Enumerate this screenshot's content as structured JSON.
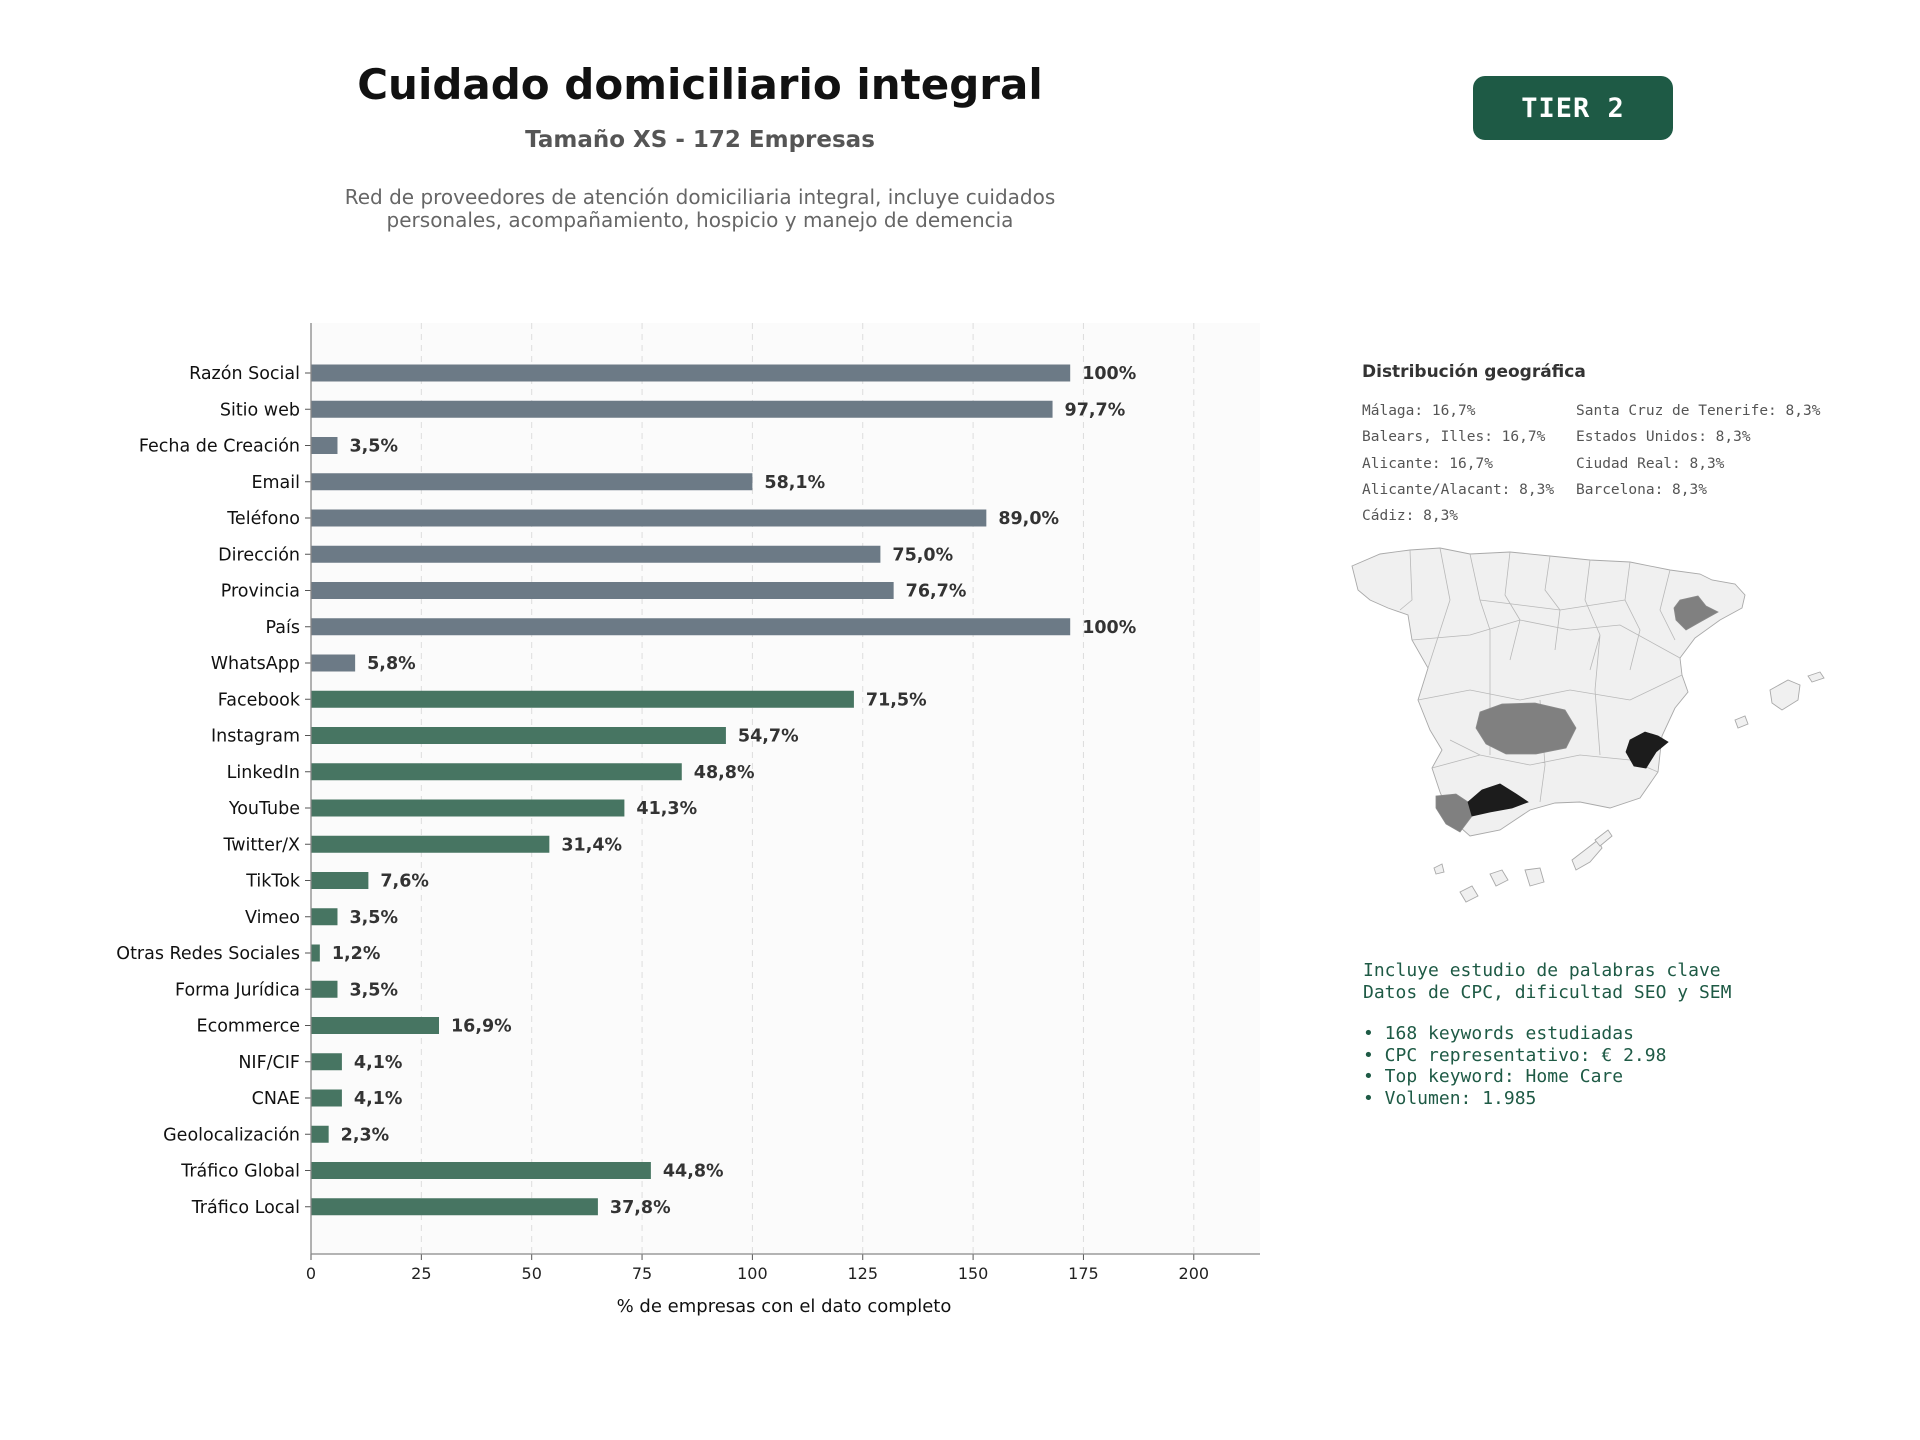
{
  "header": {
    "title": "Cuidado domiciliario integral",
    "subtitle": "Tamaño XS - 172 Empresas",
    "description_line1": "Red de proveedores de atención domiciliaria integral, incluye cuidados",
    "description_line2": "personales, acompañamiento, hospicio y manejo de demencia"
  },
  "badge": {
    "label": "TIER 2",
    "color": "#1e5a45"
  },
  "chart_data": {
    "type": "bar",
    "orientation": "horizontal",
    "categories": [
      "Razón Social",
      "Sitio web",
      "Fecha de Creación",
      "Email",
      "Teléfono",
      "Dirección",
      "Provincia",
      "País",
      "WhatsApp",
      "Facebook",
      "Instagram",
      "LinkedIn",
      "YouTube",
      "Twitter/X",
      "TikTok",
      "Vimeo",
      "Otras Redes Sociales",
      "Forma Jurídica",
      "Ecommerce",
      "NIF/CIF",
      "CNAE",
      "Geolocalización",
      "Tráfico Global",
      "Tráfico Local"
    ],
    "values": [
      172,
      168,
      6,
      100,
      153,
      129,
      132,
      172,
      10,
      123,
      94,
      84,
      71,
      54,
      13,
      6,
      2,
      6,
      29,
      7,
      7,
      4,
      77,
      65
    ],
    "labels": [
      "100%",
      "97,7%",
      "3,5%",
      "58,1%",
      "89,0%",
      "75,0%",
      "76,7%",
      "100%",
      "5,8%",
      "71,5%",
      "54,7%",
      "48,8%",
      "41,3%",
      "31,4%",
      "7,6%",
      "3,5%",
      "1,2%",
      "3,5%",
      "16,9%",
      "4,1%",
      "4,1%",
      "2,3%",
      "44,8%",
      "37,8%"
    ],
    "colors": [
      "#6c7a86",
      "#6c7a86",
      "#6c7a86",
      "#6c7a86",
      "#6c7a86",
      "#6c7a86",
      "#6c7a86",
      "#6c7a86",
      "#6c7a86",
      "#477562",
      "#477562",
      "#477562",
      "#477562",
      "#477562",
      "#477562",
      "#477562",
      "#477562",
      "#477562",
      "#477562",
      "#477562",
      "#477562",
      "#477562",
      "#477562",
      "#477562"
    ],
    "xlabel": "% de empresas con el dato completo",
    "xlim": [
      0,
      215
    ],
    "xticks": [
      0,
      25,
      50,
      75,
      100,
      125,
      150,
      175,
      200
    ],
    "grid": "vertical dashed"
  },
  "geo": {
    "title": "Distribución geográfica",
    "items": [
      "Málaga: 16,7%",
      "Santa Cruz de Tenerife: 8,3%",
      "Balears, Illes: 16,7%",
      "Estados Unidos: 8,3%",
      "Alicante: 16,7%",
      "Ciudad Real: 8,3%",
      "Alicante/Alacant: 8,3%",
      "Barcelona: 8,3%",
      "Cádiz: 8,3%"
    ]
  },
  "keywords": {
    "line1": "Incluye estudio de palabras clave",
    "line2": "Datos de CPC, dificultad SEO y SEM",
    "bullet1": "• 168 keywords estudiadas",
    "bullet2": "• CPC representativo: € 2.98",
    "bullet3": "• Top keyword: Home Care",
    "bullet4": "• Volumen: 1.985"
  }
}
